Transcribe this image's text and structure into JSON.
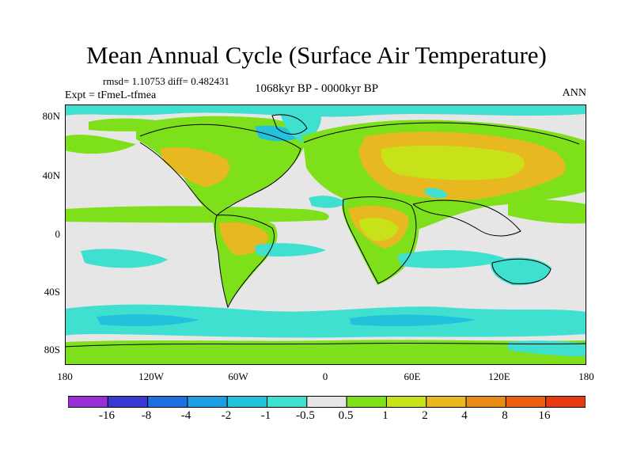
{
  "title": "Mean Annual Cycle (Surface Air Temperature)",
  "stats": "rmsd= 1.10753 diff= 0.482431",
  "experiment": "Expt = tFmeL-tfmea",
  "period": "1068kyr BP - 0000kyr BP",
  "season": "ANN",
  "lat_labels": [
    "80N",
    "40N",
    "0",
    "40S",
    "80S"
  ],
  "lon_labels": [
    "180",
    "120W",
    "60W",
    "0",
    "60E",
    "120E",
    "180"
  ],
  "colorbar": {
    "labels": [
      "-16",
      "-8",
      "-4",
      "-2",
      "-1",
      "-0.5",
      "0.5",
      "1",
      "2",
      "4",
      "8",
      "16"
    ],
    "colors": [
      "#9b2fd6",
      "#3a3ad0",
      "#1f6fe0",
      "#1e9ee0",
      "#22c2dc",
      "#3fe0d0",
      "#e6e6e6",
      "#7ee01a",
      "#c8e21a",
      "#e8b820",
      "#e88a18",
      "#e86010",
      "#e63a10"
    ]
  },
  "map_colors": {
    "ocean_neutral": "#e6e6e6",
    "land_warm": "#e8b820",
    "land_mild": "#c8e21a",
    "green": "#7ee01a",
    "cyan": "#3fe0d0",
    "blue": "#22c2dc"
  }
}
